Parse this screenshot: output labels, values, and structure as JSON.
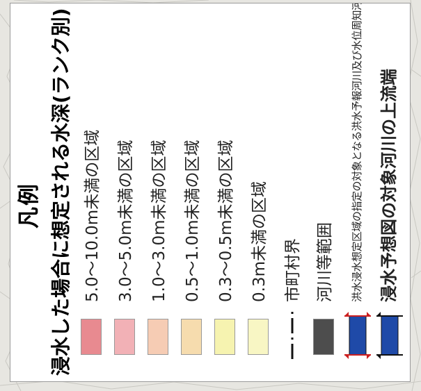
{
  "legend": {
    "title": "凡例",
    "subtitle": "浸水した場合に想定される水深(ランク別)",
    "depth_ranks": [
      {
        "label": "5.0～10.0m未満の区域",
        "color": "#e88a90"
      },
      {
        "label": "3.0～5.0m未満の区域",
        "color": "#f2b1b6"
      },
      {
        "label": "1.0～3.0m未満の区域",
        "color": "#f6ccb4"
      },
      {
        "label": "0.5～1.0m未満の区域",
        "color": "#f6dcae"
      },
      {
        "label": "0.3～0.5m未満の区域",
        "color": "#f6f3b0"
      },
      {
        "label": "0.3m未満の区域",
        "color": "#f8f6c4"
      }
    ],
    "boundary": {
      "label": "市町村界",
      "icon": "dash-dot-line"
    },
    "river_area": {
      "label": "河川等範囲",
      "color": "#4d4d4d"
    },
    "designated_river": {
      "label": "洪水浸水想定区域の指定の対象となる洪水予報河川及び水位周知河川",
      "color": "#1f4aa8",
      "marker_color": "#cc1f1f",
      "icon": "red-arrow-endpoints"
    },
    "upstream_end": {
      "label": "浸水予想図の対象河川の上流端",
      "color": "#1f4aa8",
      "marker_color": "#111111",
      "icon": "black-arrow-endpoints"
    }
  }
}
